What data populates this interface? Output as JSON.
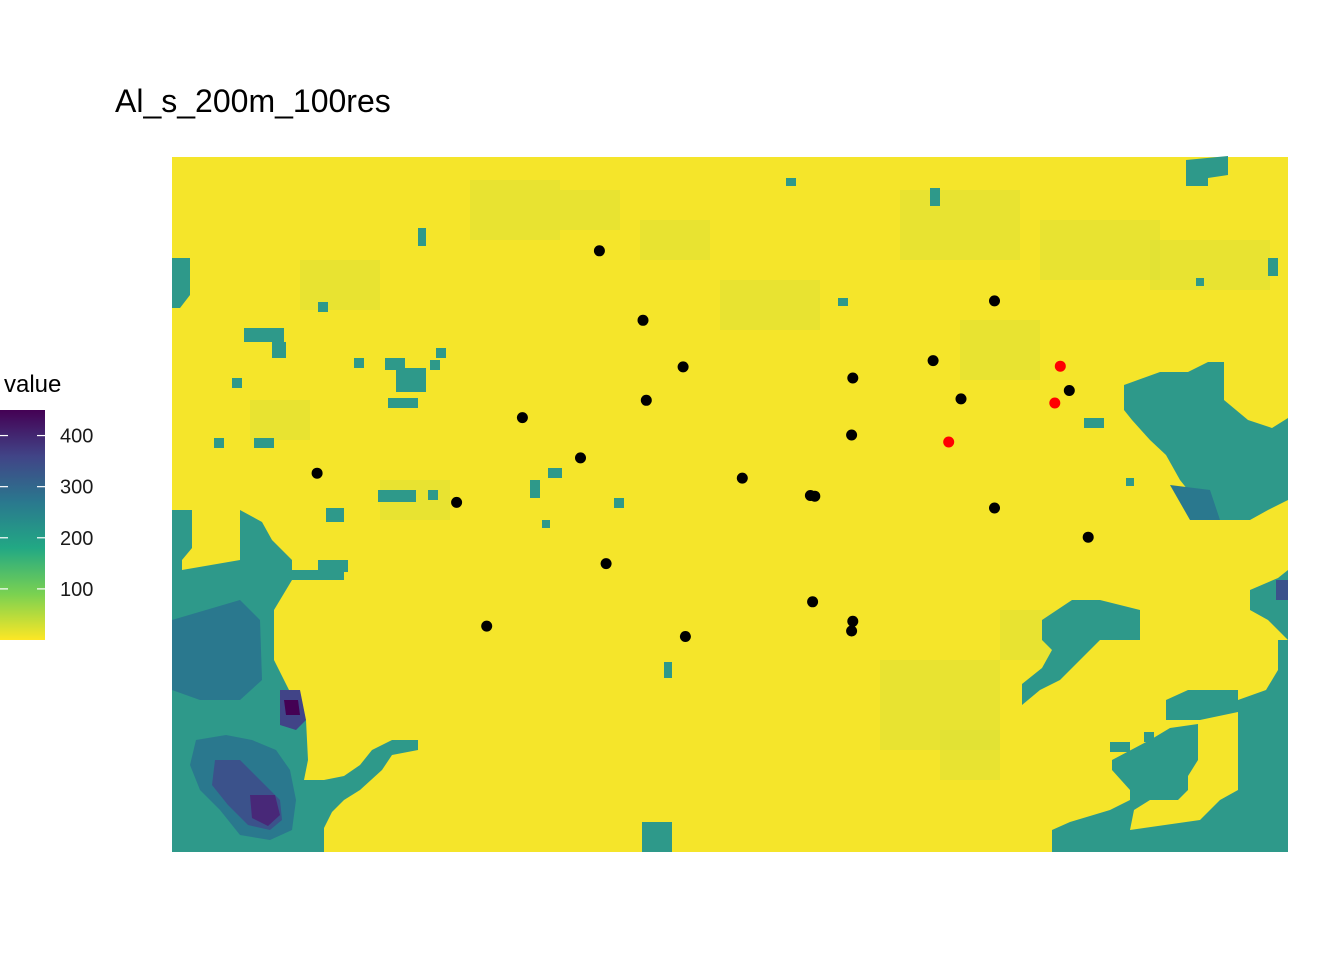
{
  "chart_data": {
    "type": "heatmap",
    "title": "Al_s_200m_100res",
    "xlabel": "",
    "ylabel": "",
    "grid": false,
    "legend": {
      "title": "value",
      "placement": "left",
      "range": [
        0,
        450
      ],
      "ticks": [
        100,
        200,
        300,
        400
      ],
      "tick_labels": [
        "100",
        "200",
        "300",
        "400"
      ],
      "colormap": "viridis",
      "colors": [
        "#FDE725",
        "#7AD151",
        "#22A884",
        "#2A788E",
        "#414487",
        "#440154"
      ]
    },
    "raster": {
      "description_colors": {
        "low": "#F6E52A",
        "mid": "#D8E236",
        "teal": "#2E9B8A",
        "high": "#440154"
      }
    },
    "series": [
      {
        "color": "#000000",
        "points": [
          [
            0.383,
            0.865
          ],
          [
            0.422,
            0.765
          ],
          [
            0.458,
            0.698
          ],
          [
            0.425,
            0.65
          ],
          [
            0.314,
            0.625
          ],
          [
            0.366,
            0.567
          ],
          [
            0.13,
            0.545
          ],
          [
            0.255,
            0.503
          ],
          [
            0.511,
            0.538
          ],
          [
            0.389,
            0.415
          ],
          [
            0.282,
            0.325
          ],
          [
            0.46,
            0.31
          ],
          [
            0.574,
            0.36
          ],
          [
            0.609,
            0.6
          ],
          [
            0.682,
            0.707
          ],
          [
            0.707,
            0.652
          ],
          [
            0.61,
            0.682
          ],
          [
            0.737,
            0.793
          ],
          [
            0.804,
            0.664
          ],
          [
            0.572,
            0.513
          ],
          [
            0.821,
            0.453
          ],
          [
            0.737,
            0.495
          ],
          [
            0.61,
            0.332
          ],
          [
            0.576,
            0.512
          ],
          [
            0.609,
            0.318
          ]
        ]
      },
      {
        "color": "#FF0000",
        "points": [
          [
            0.796,
            0.699
          ],
          [
            0.791,
            0.646
          ],
          [
            0.696,
            0.59
          ]
        ]
      }
    ]
  }
}
